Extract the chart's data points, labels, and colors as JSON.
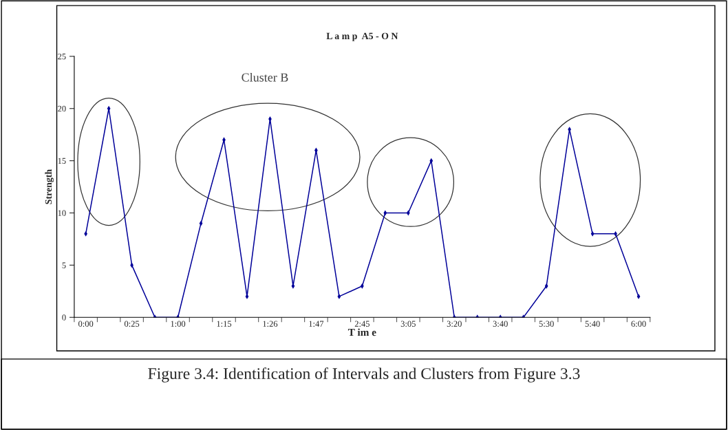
{
  "chart_data": {
    "type": "line",
    "title": "L a m p  A5 - O N",
    "xlabel": "T im e",
    "ylabel": "Strength",
    "categories": [
      "0:00",
      null,
      "0:25",
      null,
      "1:00",
      null,
      "1:15",
      null,
      "1:26",
      null,
      "1:47",
      null,
      "2:45",
      null,
      "3:05",
      null,
      "3:20",
      null,
      "3:40",
      null,
      "5:30",
      null,
      "5:40",
      null,
      "6:00"
    ],
    "series": [
      {
        "color": "#000099",
        "values": [
          8,
          20,
          5,
          0,
          0,
          9,
          17,
          2,
          19,
          3,
          16,
          2,
          3,
          10,
          10,
          15,
          0,
          0,
          0,
          0,
          3,
          18,
          8,
          8,
          2
        ]
      }
    ],
    "ylim": [
      0,
      25
    ],
    "yticks": [
      0,
      5,
      10,
      15,
      20,
      25
    ],
    "grid": false,
    "legend": false,
    "marker": "diamond",
    "line_style": "solid",
    "annotations": [
      "Cluster B",
      "Figure 3.4: Identification of Intervals and Clusters from Figure 3.3"
    ]
  }
}
